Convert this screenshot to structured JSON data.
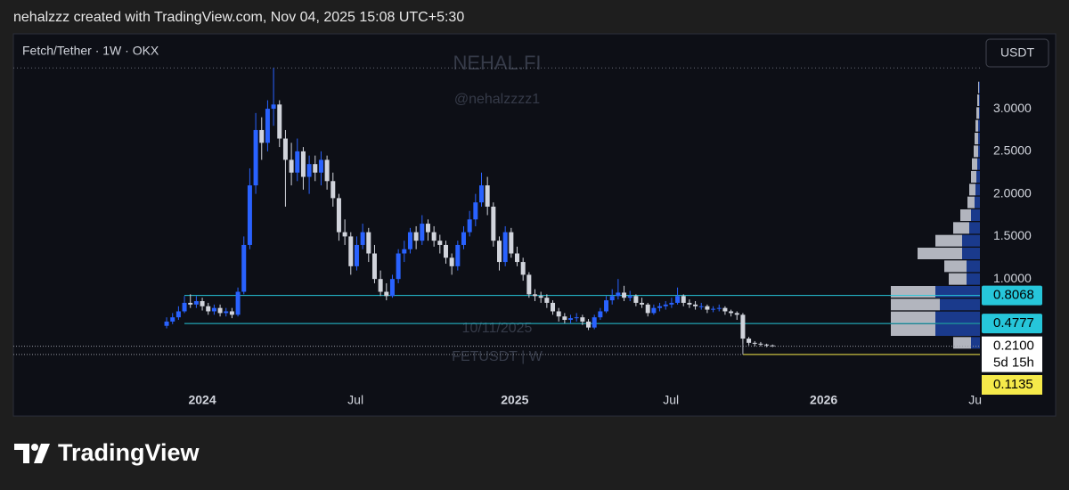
{
  "header": "nehalzzz created with TradingView.com, Nov 04, 2025 15:08 UTC+5:30",
  "footer": {
    "brand": "TradingView"
  },
  "chart_data": {
    "type": "candlestick",
    "title": "Fetch/Tether · 1W · OKX",
    "currency": "USDT",
    "watermarks": [
      "NEHAL.FI",
      "@nehalzzzz1",
      "10/11/2025",
      "FETUSDT | W"
    ],
    "up_color": "#2962ff",
    "down_color": "#d1d4dc",
    "ylim": [
      -0.61,
      3.88
    ],
    "yticks": [
      {
        "value": 1,
        "label": "1.0000"
      },
      {
        "value": 1.5,
        "label": "1.5000"
      },
      {
        "value": 2,
        "label": "2.0000"
      },
      {
        "value": 2.5,
        "label": "2.5000"
      },
      {
        "value": 3,
        "label": "3.0000"
      }
    ],
    "xlim": [
      -25.8,
      136.9
    ],
    "xticks": [
      {
        "value": 6.0,
        "label": "2024"
      },
      {
        "value": 31.8,
        "label": "Jul"
      },
      {
        "value": 58.6,
        "label": "2025"
      },
      {
        "value": 84.9,
        "label": "Jul"
      },
      {
        "value": 110.6,
        "label": "2026"
      },
      {
        "value": 136.1,
        "label": "Ju"
      }
    ],
    "ohlc": [
      [
        0.45,
        0.55,
        0.42,
        0.5
      ],
      [
        0.5,
        0.6,
        0.47,
        0.55
      ],
      [
        0.55,
        0.68,
        0.52,
        0.62
      ],
      [
        0.62,
        0.8,
        0.6,
        0.72
      ],
      [
        0.72,
        0.82,
        0.66,
        0.7
      ],
      [
        0.7,
        0.8,
        0.66,
        0.74
      ],
      [
        0.74,
        0.78,
        0.63,
        0.68
      ],
      [
        0.68,
        0.72,
        0.58,
        0.62
      ],
      [
        0.62,
        0.7,
        0.58,
        0.66
      ],
      [
        0.66,
        0.7,
        0.56,
        0.6
      ],
      [
        0.6,
        0.66,
        0.56,
        0.62
      ],
      [
        0.62,
        0.66,
        0.54,
        0.58
      ],
      [
        0.58,
        0.9,
        0.56,
        0.85
      ],
      [
        0.85,
        1.5,
        0.82,
        1.4
      ],
      [
        1.4,
        2.3,
        1.35,
        2.1
      ],
      [
        2.1,
        2.95,
        2.0,
        2.75
      ],
      [
        2.75,
        2.9,
        2.4,
        2.6
      ],
      [
        2.6,
        3.1,
        2.5,
        3.0
      ],
      [
        3.0,
        3.48,
        2.8,
        3.05
      ],
      [
        3.05,
        3.1,
        2.55,
        2.65
      ],
      [
        2.65,
        2.75,
        1.85,
        2.4
      ],
      [
        2.4,
        2.6,
        2.1,
        2.25
      ],
      [
        2.25,
        2.65,
        2.15,
        2.5
      ],
      [
        2.5,
        2.55,
        2.05,
        2.2
      ],
      [
        2.2,
        2.45,
        2.0,
        2.35
      ],
      [
        2.35,
        2.45,
        2.15,
        2.25
      ],
      [
        2.25,
        2.5,
        2.1,
        2.4
      ],
      [
        2.4,
        2.45,
        2.05,
        2.15
      ],
      [
        2.15,
        2.25,
        1.85,
        1.95
      ],
      [
        1.95,
        2.0,
        1.45,
        1.55
      ],
      [
        1.55,
        1.7,
        1.4,
        1.5
      ],
      [
        1.5,
        1.55,
        1.05,
        1.15
      ],
      [
        1.15,
        1.5,
        1.1,
        1.4
      ],
      [
        1.4,
        1.65,
        1.35,
        1.55
      ],
      [
        1.55,
        1.6,
        1.2,
        1.3
      ],
      [
        1.3,
        1.4,
        0.95,
        1.0
      ],
      [
        1.0,
        1.1,
        0.8,
        0.85
      ],
      [
        0.85,
        0.95,
        0.75,
        0.8
      ],
      [
        0.8,
        1.05,
        0.78,
        1.0
      ],
      [
        1.0,
        1.35,
        0.95,
        1.3
      ],
      [
        1.3,
        1.45,
        1.2,
        1.35
      ],
      [
        1.35,
        1.6,
        1.3,
        1.55
      ],
      [
        1.55,
        1.62,
        1.35,
        1.45
      ],
      [
        1.45,
        1.75,
        1.4,
        1.65
      ],
      [
        1.65,
        1.7,
        1.45,
        1.55
      ],
      [
        1.55,
        1.62,
        1.38,
        1.45
      ],
      [
        1.45,
        1.52,
        1.3,
        1.4
      ],
      [
        1.4,
        1.45,
        1.18,
        1.25
      ],
      [
        1.25,
        1.3,
        1.05,
        1.15
      ],
      [
        1.15,
        1.45,
        1.1,
        1.4
      ],
      [
        1.4,
        1.62,
        1.35,
        1.55
      ],
      [
        1.55,
        1.8,
        1.5,
        1.7
      ],
      [
        1.7,
        2.0,
        1.62,
        1.9
      ],
      [
        1.9,
        2.25,
        1.85,
        2.1
      ],
      [
        2.1,
        2.2,
        1.75,
        1.85
      ],
      [
        1.85,
        1.9,
        1.38,
        1.45
      ],
      [
        1.45,
        1.5,
        1.1,
        1.2
      ],
      [
        1.2,
        1.62,
        1.15,
        1.55
      ],
      [
        1.55,
        1.6,
        1.25,
        1.3
      ],
      [
        1.3,
        1.38,
        1.15,
        1.2
      ],
      [
        1.2,
        1.25,
        0.98,
        1.05
      ],
      [
        1.05,
        1.08,
        0.78,
        0.82
      ],
      [
        0.82,
        0.88,
        0.74,
        0.8
      ],
      [
        0.8,
        0.85,
        0.72,
        0.78
      ],
      [
        0.78,
        0.82,
        0.66,
        0.72
      ],
      [
        0.72,
        0.75,
        0.58,
        0.62
      ],
      [
        0.62,
        0.66,
        0.5,
        0.56
      ],
      [
        0.56,
        0.6,
        0.48,
        0.52
      ],
      [
        0.52,
        0.58,
        0.48,
        0.54
      ],
      [
        0.54,
        0.6,
        0.5,
        0.55
      ],
      [
        0.55,
        0.58,
        0.46,
        0.5
      ],
      [
        0.5,
        0.53,
        0.4,
        0.43
      ],
      [
        0.43,
        0.58,
        0.41,
        0.55
      ],
      [
        0.55,
        0.66,
        0.52,
        0.62
      ],
      [
        0.62,
        0.8,
        0.6,
        0.75
      ],
      [
        0.75,
        0.88,
        0.7,
        0.8
      ],
      [
        0.8,
        1.0,
        0.76,
        0.84
      ],
      [
        0.84,
        0.92,
        0.74,
        0.78
      ],
      [
        0.78,
        0.86,
        0.74,
        0.8
      ],
      [
        0.8,
        0.82,
        0.68,
        0.72
      ],
      [
        0.72,
        0.78,
        0.66,
        0.7
      ],
      [
        0.7,
        0.72,
        0.56,
        0.6
      ],
      [
        0.6,
        0.7,
        0.58,
        0.66
      ],
      [
        0.66,
        0.72,
        0.62,
        0.68
      ],
      [
        0.68,
        0.74,
        0.64,
        0.7
      ],
      [
        0.7,
        0.78,
        0.66,
        0.72
      ],
      [
        0.72,
        0.9,
        0.7,
        0.8
      ],
      [
        0.8,
        0.82,
        0.68,
        0.72
      ],
      [
        0.72,
        0.76,
        0.66,
        0.7
      ],
      [
        0.7,
        0.74,
        0.64,
        0.68
      ],
      [
        0.68,
        0.72,
        0.64,
        0.68
      ],
      [
        0.68,
        0.7,
        0.6,
        0.64
      ],
      [
        0.64,
        0.68,
        0.61,
        0.65
      ],
      [
        0.65,
        0.7,
        0.62,
        0.66
      ],
      [
        0.66,
        0.68,
        0.58,
        0.62
      ],
      [
        0.62,
        0.64,
        0.56,
        0.6
      ],
      [
        0.6,
        0.62,
        0.52,
        0.58
      ],
      [
        0.58,
        0.6,
        0.24,
        0.3
      ],
      [
        0.3,
        0.32,
        0.22,
        0.25
      ],
      [
        0.25,
        0.27,
        0.21,
        0.24
      ],
      [
        0.24,
        0.26,
        0.21,
        0.23
      ],
      [
        0.23,
        0.24,
        0.2,
        0.22
      ],
      [
        0.22,
        0.23,
        0.2,
        0.21
      ]
    ],
    "volume_profile": {
      "prices": [
        0.25,
        0.4,
        0.55,
        0.7,
        0.85,
        1.0,
        1.15,
        1.3,
        1.45,
        1.6,
        1.75,
        1.9,
        2.05,
        2.2,
        2.35,
        2.5,
        2.65,
        2.8,
        2.95,
        3.1,
        3.25
      ],
      "buy": [
        10,
        50,
        50,
        45,
        50,
        15,
        15,
        20,
        20,
        12,
        10,
        6,
        5,
        4,
        3,
        2,
        2,
        2,
        1,
        1,
        1
      ],
      "sell": [
        20,
        50,
        50,
        55,
        50,
        20,
        25,
        50,
        30,
        18,
        12,
        8,
        7,
        6,
        6,
        5,
        4,
        3,
        3,
        2,
        1
      ],
      "buy_color": "#1a3a8c",
      "sell_color": "#b2b5be"
    },
    "levels": [
      {
        "value": 0.8068,
        "label": "0.8068",
        "color": "#26c6da"
      },
      {
        "value": 0.4777,
        "label": "0.4777",
        "color": "#26c6da"
      }
    ],
    "last_price": {
      "value": 0.21,
      "label": "0.2100",
      "countdown": "5d 15h"
    },
    "low_line": {
      "value": 0.1135,
      "label": "0.1135",
      "color": "#f5e94a"
    }
  }
}
